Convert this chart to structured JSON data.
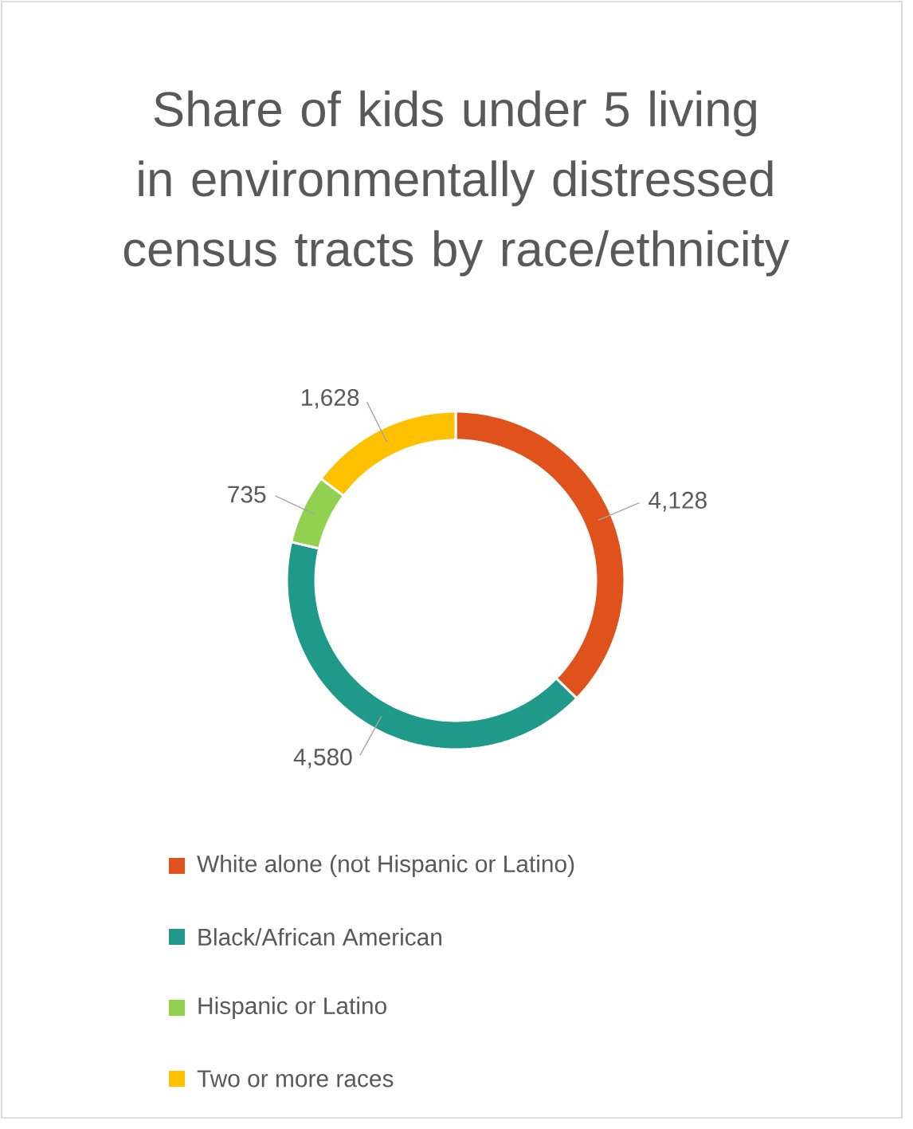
{
  "chart_data": {
    "type": "donut",
    "title": "Share of kids under 5 living in environmentally distressed census tracts by race/ethnicity",
    "categories": [
      "White alone (not Hispanic or Latino)",
      "Black/African American",
      "Hispanic or Latino",
      "Two or more races"
    ],
    "values": [
      4128,
      4580,
      735,
      1628
    ],
    "value_labels": [
      "4,128",
      "4,580",
      "735",
      "1,628"
    ],
    "colors": [
      "#e0521c",
      "#1f9a8a",
      "#92d050",
      "#ffc000"
    ],
    "legend": "bottom"
  }
}
